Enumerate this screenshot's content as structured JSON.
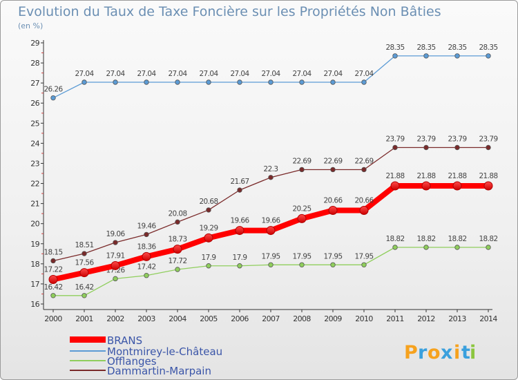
{
  "chart_data": {
    "type": "line",
    "title": "Evolution du Taux de Taxe Foncière sur les Propriétés Non Bâties",
    "subtitle": "(en %)",
    "x": [
      "2000",
      "2001",
      "2002",
      "2003",
      "2004",
      "2005",
      "2006",
      "2007",
      "2008",
      "2009",
      "2010",
      "2011",
      "2012",
      "2013",
      "2014"
    ],
    "ylim": [
      16,
      29
    ],
    "yticks": [
      16,
      17,
      18,
      19,
      20,
      21,
      22,
      23,
      24,
      25,
      26,
      27,
      28,
      29
    ],
    "grid": false,
    "legend_position": "bottom-left",
    "series": [
      {
        "name": "BRANS",
        "color": "#ff0000",
        "values": [
          17.22,
          17.56,
          17.91,
          18.36,
          18.73,
          19.29,
          19.66,
          19.66,
          20.25,
          20.66,
          20.66,
          21.88,
          21.88,
          21.88,
          21.88
        ],
        "labels": [
          "17.22",
          "17.56",
          "17.91",
          "18.36",
          "18.73",
          "19.29",
          "19.66",
          "19.66",
          "20.25",
          "20.66",
          "20.66",
          "21.88",
          "21.88",
          "21.88",
          "21.88"
        ]
      },
      {
        "name": "Montmirey-le-Château",
        "color": "#5b9bd5",
        "values": [
          26.26,
          27.04,
          27.04,
          27.04,
          27.04,
          27.04,
          27.04,
          27.04,
          27.04,
          27.04,
          27.04,
          28.35,
          28.35,
          28.35,
          28.35
        ],
        "labels": [
          "26.26",
          "27.04",
          "27.04",
          "27.04",
          "27.04",
          "27.04",
          "27.04",
          "27.04",
          "27.04",
          "27.04",
          "27.04",
          "28.35",
          "28.35",
          "28.35",
          "28.35"
        ]
      },
      {
        "name": "Offlanges",
        "color": "#8fce5c",
        "values": [
          16.42,
          16.42,
          17.26,
          17.42,
          17.72,
          17.9,
          17.9,
          17.95,
          17.95,
          17.95,
          17.95,
          18.82,
          18.82,
          18.82,
          18.82
        ],
        "labels": [
          "16.42",
          "16.42",
          "17.26",
          "17.42",
          "17.72",
          "17.9",
          "17.9",
          "17.95",
          "17.95",
          "17.95",
          "17.95",
          "18.82",
          "18.82",
          "18.82",
          "18.82"
        ]
      },
      {
        "name": "Dammartin-Marpain",
        "color": "#7a2a2a",
        "values": [
          18.15,
          18.51,
          19.06,
          19.46,
          20.08,
          20.68,
          21.67,
          22.3,
          22.69,
          22.69,
          22.69,
          23.79,
          23.79,
          23.79,
          23.79
        ],
        "labels": [
          "18.15",
          "18.51",
          "19.06",
          "19.46",
          "20.08",
          "20.68",
          "21.67",
          "22.3",
          "22.69",
          "22.69",
          "22.69",
          "23.79",
          "23.79",
          "23.79",
          "23.79"
        ]
      }
    ]
  },
  "logo": {
    "letters": [
      "P",
      "r",
      "o",
      "x",
      "i",
      "t",
      "i"
    ],
    "colors": [
      "#f6a21e",
      "#3aa0dd",
      "#f6a21e",
      "#3aa0dd",
      "#f6a21e",
      "#3aa0dd",
      "#8cc63f"
    ]
  }
}
